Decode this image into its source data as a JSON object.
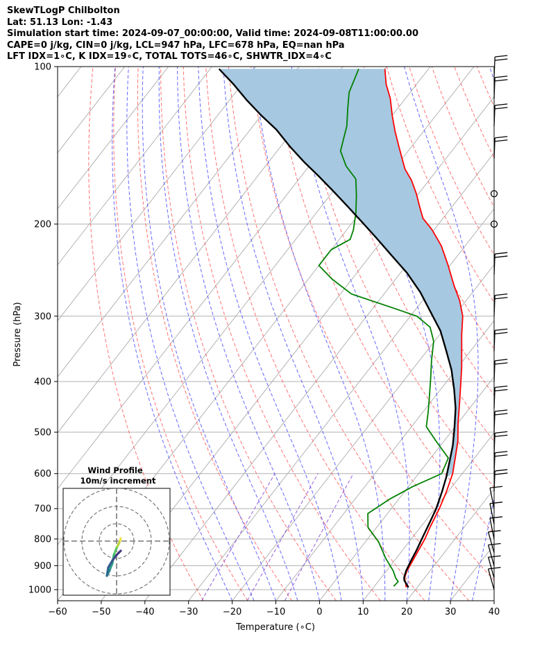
{
  "header": {
    "line1": "SkewTLogP Chilbolton",
    "line2": "Lat: 51.13   Lon: -1.43",
    "line3": "Simulation start time: 2024-09-07_00:00:00, Valid time: 2024-09-08T11:00:00.00",
    "line4": "CAPE=0 j/kg, CIN=0 j/kg, LCL=947 hPa, LFC=678 hPa, EQ=nan hPa",
    "line5": "LFT IDX=1∘C, K IDX=19∘C, TOTAL TOTS=46∘C, SHWTR_IDX=4∘C"
  },
  "colors": {
    "temperature": "#ff0000",
    "dewpoint": "#008000",
    "parcel": "#000000",
    "cape_fill": "#a6c8e0",
    "isotherms": "#aaaaaa",
    "dry_adiabats": "#ff5a5a",
    "moist_adiabats": "#4b4bff",
    "mixing_ratio": "#8a4bd6"
  },
  "chart_data": {
    "type": "line",
    "xlabel": "Temperature (∘C)",
    "ylabel": "Pressure (hPa)",
    "xlim": [
      -60,
      40
    ],
    "ylim": [
      1050,
      100
    ],
    "yscale": "log",
    "skew": true,
    "grid": true,
    "x_ticks": [
      "−60",
      "−50",
      "−40",
      "−30",
      "−20",
      "−10",
      "0",
      "10",
      "20",
      "30",
      "40"
    ],
    "x_tick_values": [
      -60,
      -50,
      -40,
      -30,
      -20,
      -10,
      0,
      10,
      20,
      30,
      40
    ],
    "y_ticks": [
      "100",
      "200",
      "300",
      "400",
      "500",
      "600",
      "700",
      "800",
      "900",
      "1000"
    ],
    "y_tick_values": [
      100,
      200,
      300,
      400,
      500,
      600,
      700,
      800,
      900,
      1000
    ],
    "series": [
      {
        "key": "temperature",
        "points": [
          [
            17.5,
            990
          ],
          [
            16.5,
            970
          ],
          [
            15.4,
            950
          ],
          [
            14.7,
            920
          ],
          [
            14.2,
            880
          ],
          [
            13.8,
            850
          ],
          [
            13.1,
            800
          ],
          [
            12.2,
            760
          ],
          [
            11.0,
            700
          ],
          [
            9.6,
            650
          ],
          [
            7.8,
            600
          ],
          [
            5.6,
            560
          ],
          [
            3.2,
            520
          ],
          [
            0.0,
            480
          ],
          [
            -3.2,
            440
          ],
          [
            -6.3,
            405
          ],
          [
            -9.2,
            375
          ],
          [
            -12.0,
            350
          ],
          [
            -15.0,
            325
          ],
          [
            -18.0,
            300
          ],
          [
            -21.5,
            280
          ],
          [
            -25.5,
            262
          ],
          [
            -30.4,
            240
          ],
          [
            -35.5,
            220
          ],
          [
            -40.5,
            205
          ],
          [
            -44.6,
            195
          ],
          [
            -47.5,
            185
          ],
          [
            -50.5,
            175
          ],
          [
            -54.0,
            165
          ],
          [
            -57.5,
            157
          ],
          [
            -60.0,
            150
          ],
          [
            -63.0,
            142
          ],
          [
            -66.5,
            133
          ],
          [
            -70.0,
            124
          ],
          [
            -73.5,
            115
          ],
          [
            -77.0,
            108
          ],
          [
            -80.0,
            101
          ]
        ]
      },
      {
        "key": "dewpoint",
        "points": [
          [
            14.4,
            985
          ],
          [
            14.6,
            965
          ],
          [
            13.4,
            950
          ],
          [
            11.5,
            920
          ],
          [
            7.5,
            870
          ],
          [
            3.0,
            810
          ],
          [
            -2.0,
            760
          ],
          [
            -4.5,
            715
          ],
          [
            -2.0,
            670
          ],
          [
            1.0,
            635
          ],
          [
            5.3,
            600
          ],
          [
            4.0,
            560
          ],
          [
            -1.8,
            520
          ],
          [
            -6.6,
            488
          ],
          [
            -9.0,
            455
          ],
          [
            -11.5,
            425
          ],
          [
            -14.2,
            395
          ],
          [
            -17.2,
            365
          ],
          [
            -20.2,
            335
          ],
          [
            -23.5,
            315
          ],
          [
            -28.5,
            300
          ],
          [
            -35.0,
            290
          ],
          [
            -47.5,
            272
          ],
          [
            -54.5,
            255
          ],
          [
            -60.0,
            240
          ],
          [
            -60.0,
            224
          ],
          [
            -57.5,
            214
          ],
          [
            -58.5,
            205
          ],
          [
            -61.0,
            190
          ],
          [
            -64.0,
            176
          ],
          [
            -67.0,
            164
          ],
          [
            -71.5,
            155
          ],
          [
            -75.5,
            145
          ],
          [
            -78.5,
            130
          ],
          [
            -81.5,
            120
          ],
          [
            -84.0,
            112
          ],
          [
            -86.0,
            101
          ]
        ]
      },
      {
        "key": "parcel",
        "points": [
          [
            18.0,
            990
          ],
          [
            15.8,
            960
          ],
          [
            15.2,
            947
          ],
          [
            14.5,
            920
          ],
          [
            13.8,
            880
          ],
          [
            13.2,
            840
          ],
          [
            12.4,
            800
          ],
          [
            11.4,
            750
          ],
          [
            10.3,
            700
          ],
          [
            8.6,
            650
          ],
          [
            7.0,
            610
          ],
          [
            5.0,
            570
          ],
          [
            2.8,
            530
          ],
          [
            0.0,
            490
          ],
          [
            -3.2,
            450
          ],
          [
            -6.8,
            415
          ],
          [
            -11.0,
            380
          ],
          [
            -15.5,
            350
          ],
          [
            -20.5,
            320
          ],
          [
            -26.0,
            295
          ],
          [
            -32.0,
            270
          ],
          [
            -38.5,
            248
          ],
          [
            -45.0,
            230
          ],
          [
            -52.0,
            212
          ],
          [
            -58.0,
            198
          ],
          [
            -64.0,
            185
          ],
          [
            -70.0,
            173
          ],
          [
            -76.0,
            162
          ],
          [
            -82.0,
            152
          ],
          [
            -88.0,
            142
          ],
          [
            -94.0,
            132
          ],
          [
            -100.0,
            124
          ],
          [
            -106.0,
            116
          ],
          [
            -112.0,
            108
          ],
          [
            -118.0,
            101
          ]
        ]
      }
    ],
    "wind_profile": {
      "title": "Wind Profile",
      "subtitle": "10m/s increment",
      "wind_barb_pressures": [
        1000,
        950,
        900,
        850,
        800,
        750,
        700,
        650,
        600,
        550,
        500,
        450,
        400,
        350,
        300,
        250,
        200,
        175,
        150,
        130,
        115,
        105
      ]
    }
  }
}
